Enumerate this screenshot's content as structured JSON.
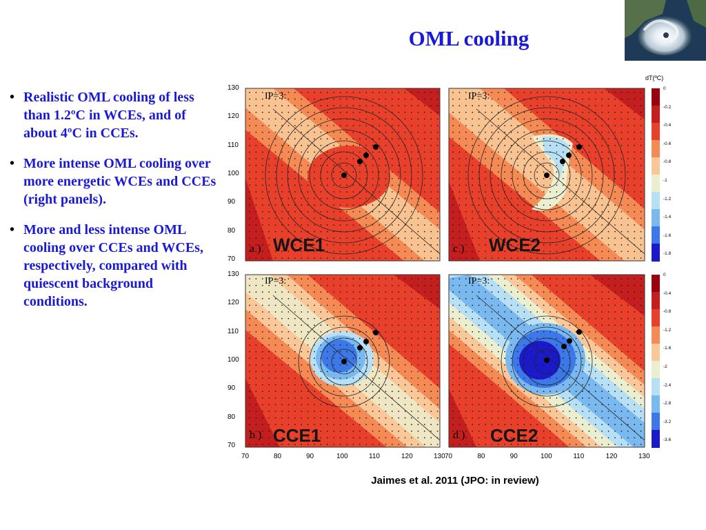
{
  "slide": {
    "title": "OML cooling",
    "citation": "Jaimes et al. 2011 (JPO: in review)"
  },
  "bullets": [
    {
      "bullet": "•",
      "text": "Realistic OML cooling of less than 1.2ºC in WCEs, and of about 4ºC in CCEs."
    },
    {
      "bullet": "•",
      "text": "More intense OML cooling over more energetic WCEs and CCEs (right panels)."
    },
    {
      "bullet": "•",
      "text": "More and less intense OML cooling over CCEs and WCEs, respectively, compared with quiescent background conditions."
    }
  ],
  "figure": {
    "colorbar_unit": "dT(ºC)",
    "colorbar_top_ticks": [
      "0",
      "-0.2",
      "-0.4",
      "-0.6",
      "-0.8",
      "-1",
      "-1.2",
      "-1.4",
      "-1.6",
      "-1.8"
    ],
    "colorbar_bottom_ticks": [
      "0",
      "-0.4",
      "-0.8",
      "-1.2",
      "-1.6",
      "-2",
      "-2.4",
      "-2.8",
      "-3.2",
      "-3.6"
    ],
    "y_ticks": [
      "130",
      "120",
      "110",
      "100",
      "90",
      "80",
      "70"
    ],
    "x_ticks_left": [
      "70",
      "80",
      "90",
      "100",
      "110",
      "120",
      "130"
    ],
    "x_ticks_right": [
      "70",
      "80",
      "90",
      "100",
      "110",
      "120",
      "130"
    ],
    "panels": [
      {
        "id": "a",
        "letter": "a )",
        "label": "WCE1",
        "ip": "IP=3:"
      },
      {
        "id": "c",
        "letter": "c )",
        "label": "WCE2",
        "ip": "IP=3:"
      },
      {
        "id": "b",
        "letter": "b )",
        "label": "CCE1",
        "ip": "IP=3:"
      },
      {
        "id": "d",
        "letter": "d )",
        "label": "CCE2",
        "ip": "IP=3:"
      }
    ]
  },
  "colors": {
    "title_blue": "#1a1ad6",
    "field_red": "#e8402a",
    "cooling_blue": "#2a55e6",
    "colorbar_top": [
      "#9a0010",
      "#c41e1e",
      "#e8402a",
      "#f58a55",
      "#fac898",
      "#eceed0",
      "#b8e0f4",
      "#7ab8f0",
      "#3c78e8",
      "#1a1acc"
    ],
    "colorbar_bottom": [
      "#9a0010",
      "#c41e1e",
      "#e8402a",
      "#f58a55",
      "#fac898",
      "#eceed0",
      "#b8e0f4",
      "#7ab8f0",
      "#3c78e8",
      "#1a1acc"
    ]
  }
}
